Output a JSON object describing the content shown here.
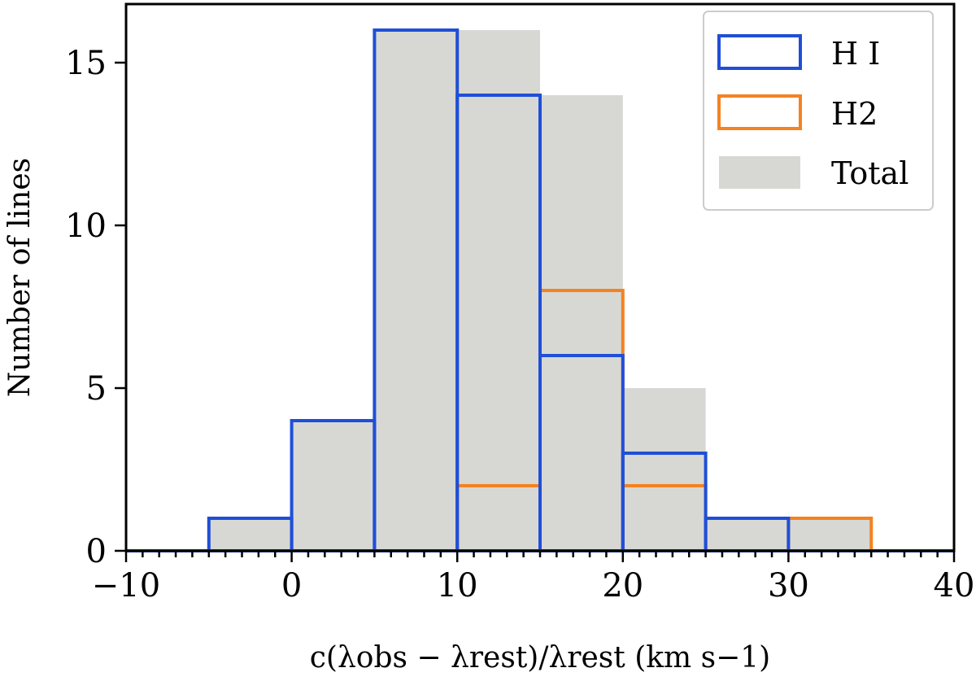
{
  "chart_data": {
    "type": "bar",
    "bin_edges": [
      -10,
      -5,
      0,
      5,
      10,
      15,
      20,
      25,
      30,
      35,
      40
    ],
    "series": [
      {
        "name": "Total",
        "key": "total",
        "style": "filled",
        "color": "#d7d8d4",
        "values": [
          0,
          1,
          4,
          16,
          16,
          14,
          5,
          1,
          1,
          0
        ]
      },
      {
        "name": "H I",
        "key": "hi",
        "style": "step",
        "color": "#1f4fd8",
        "values": [
          0,
          1,
          4,
          16,
          14,
          6,
          3,
          1,
          0,
          0
        ]
      },
      {
        "name": "H2",
        "key": "h2",
        "style": "step",
        "color": "#f58220",
        "values": [
          0,
          0,
          0,
          0,
          2,
          8,
          2,
          0,
          1,
          0
        ]
      }
    ],
    "xlim": [
      -10,
      40
    ],
    "ylim": [
      0,
      16.8
    ],
    "xticks": [
      -10,
      0,
      10,
      20,
      30,
      40
    ],
    "xtick_labels": [
      "−10",
      "0",
      "10",
      "20",
      "30",
      "40"
    ],
    "xminor_step": 1,
    "yticks": [
      0,
      5,
      10,
      15
    ],
    "ytick_labels": [
      "0",
      "5",
      "10",
      "15"
    ],
    "xlabel": "c(λobs − λrest)/λrest (km s−1)",
    "ylabel": "Number of lines",
    "legend": {
      "position": "top-right",
      "entries": [
        "H I",
        "H2",
        "Total"
      ]
    },
    "grid": false
  }
}
